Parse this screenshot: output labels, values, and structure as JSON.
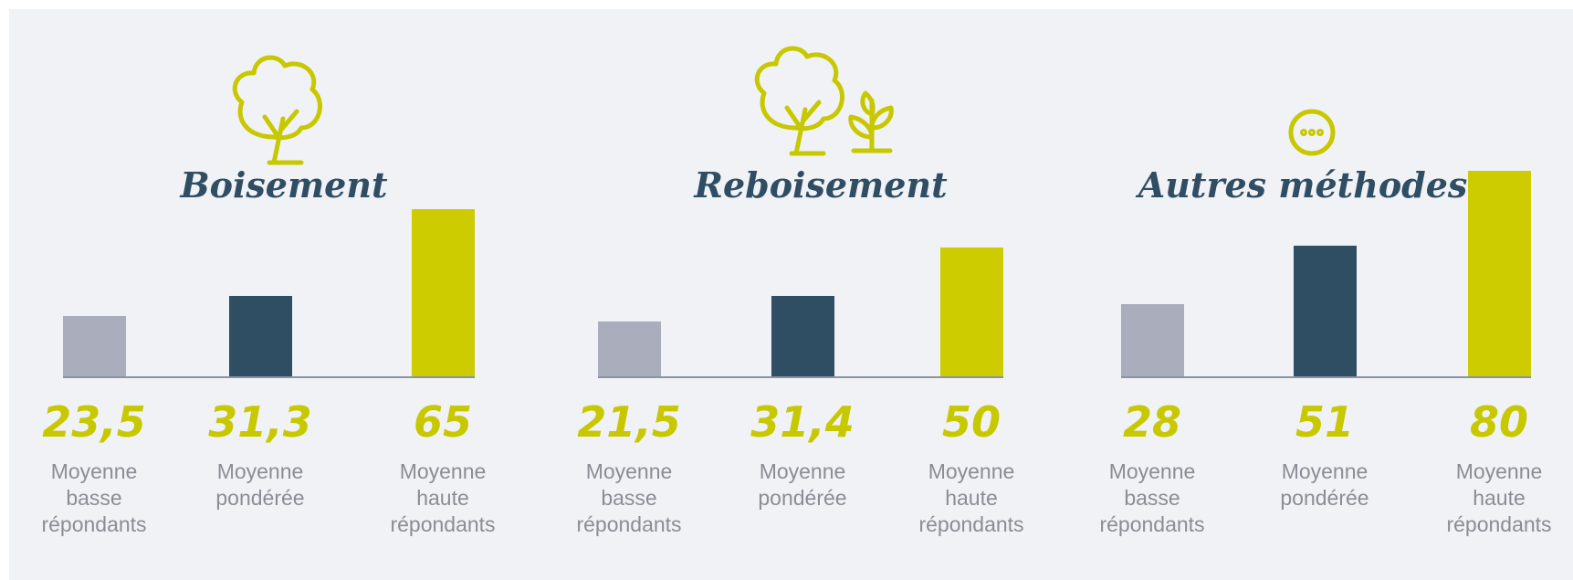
{
  "chart_data": [
    {
      "type": "bar",
      "title": "Boisement",
      "categories": [
        "Moyenne basse répondants",
        "Moyenne pondérée",
        "Moyenne haute répondants"
      ],
      "values": [
        23.5,
        31.3,
        65
      ],
      "value_labels": [
        "23,5",
        "31,3",
        "65"
      ],
      "colors": [
        "#a9adbc",
        "#2f4d63",
        "#cccc00"
      ]
    },
    {
      "type": "bar",
      "title": "Reboisement",
      "categories": [
        "Moyenne basse répondants",
        "Moyenne pondérée",
        "Moyenne haute répondants"
      ],
      "values": [
        21.5,
        31.4,
        50
      ],
      "value_labels": [
        "21,5",
        "31,4",
        "50"
      ],
      "colors": [
        "#a9adbc",
        "#2f4d63",
        "#cccc00"
      ]
    },
    {
      "type": "bar",
      "title": "Autres méthodes*",
      "categories": [
        "Moyenne basse répondants",
        "Moyenne pondérée",
        "Moyenne haute répondants"
      ],
      "values": [
        28,
        51,
        80
      ],
      "value_labels": [
        "28",
        "51",
        "80"
      ],
      "colors": [
        "#a9adbc",
        "#2f4d63",
        "#cccc00"
      ]
    }
  ]
}
